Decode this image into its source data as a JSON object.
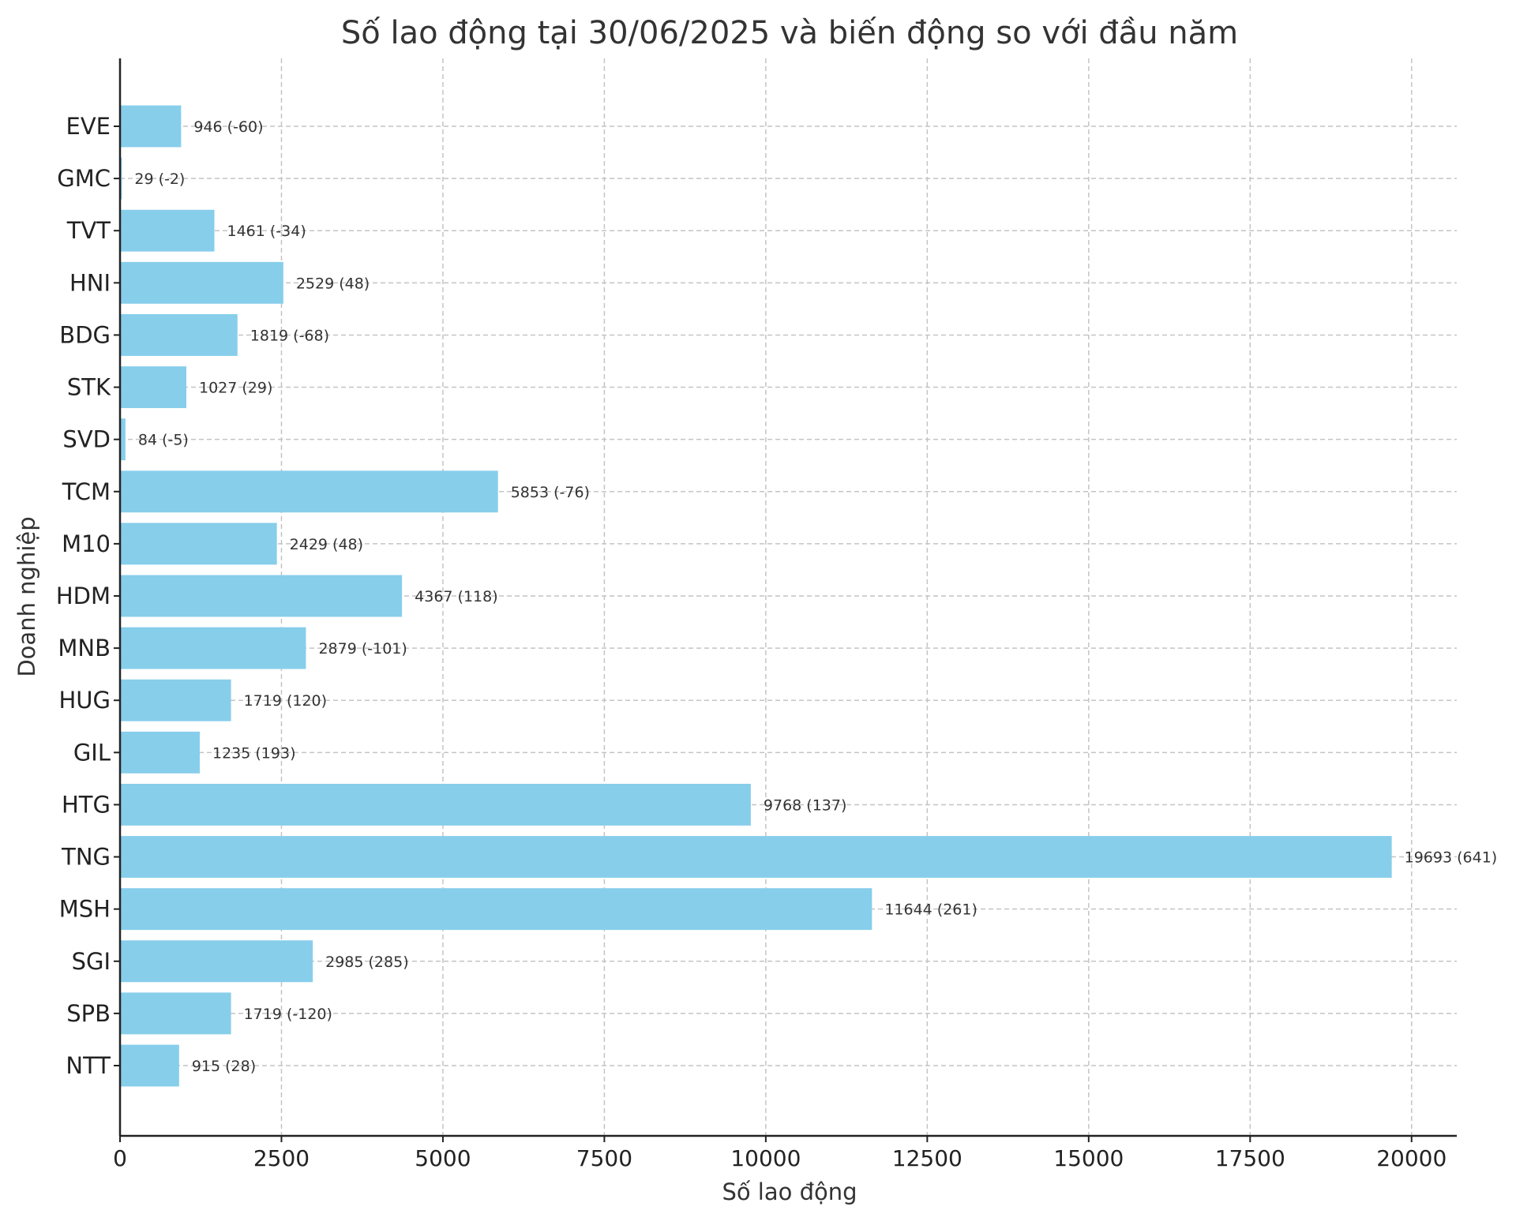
{
  "chart_data": {
    "type": "bar",
    "orientation": "horizontal",
    "title": "Số lao động tại 30/06/2025 và biến động so với đầu năm",
    "xlabel": "Số lao động",
    "ylabel": "Doanh nghiệp",
    "xlim": [
      0,
      20700
    ],
    "xticks": [
      0,
      2500,
      5000,
      7500,
      10000,
      12500,
      15000,
      17500,
      20000
    ],
    "xtick_labels": [
      "0",
      "2500",
      "5000",
      "7500",
      "10000",
      "12500",
      "15000",
      "17500",
      "20000"
    ],
    "grid": true,
    "bar_color": "#87ceeb",
    "categories": [
      "NTT",
      "SPB",
      "SGI",
      "MSH",
      "TNG",
      "HTG",
      "GIL",
      "HUG",
      "MNB",
      "HDM",
      "M10",
      "TCM",
      "SVD",
      "STK",
      "BDG",
      "HNI",
      "TVT",
      "GMC",
      "EVE"
    ],
    "values": [
      915,
      1719,
      2985,
      11644,
      19693,
      9768,
      1235,
      1719,
      2879,
      4367,
      2429,
      5853,
      84,
      1027,
      1819,
      2529,
      1461,
      29,
      946
    ],
    "changes": [
      28,
      -120,
      285,
      261,
      641,
      137,
      193,
      120,
      -101,
      118,
      48,
      -76,
      -5,
      29,
      -68,
      48,
      -34,
      -2,
      -60
    ],
    "data_labels": [
      "915 (28)",
      "1719 (-120)",
      "2985 (285)",
      "11644 (261)",
      "19693 (641)",
      "9768 (137)",
      "1235 (193)",
      "1719 (120)",
      "2879 (-101)",
      "4367 (118)",
      "2429 (48)",
      "5853 (-76)",
      "84 (-5)",
      "1027 (29)",
      "1819 (-68)",
      "2529 (48)",
      "1461 (-34)",
      "29 (-2)",
      "946 (-60)"
    ]
  }
}
